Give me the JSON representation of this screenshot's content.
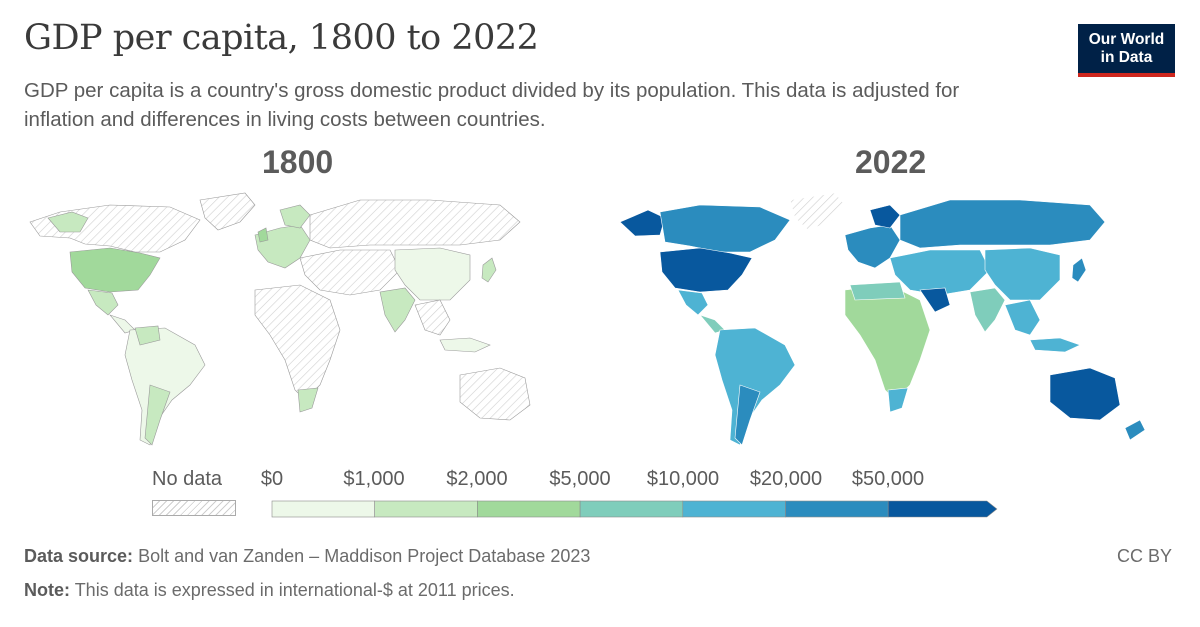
{
  "title": "GDP per capita, 1800 to 2022",
  "subtitle": "GDP per capita is a country's gross domestic product divided by its population. This data is adjusted for inflation and differences in living costs between countries.",
  "logo": {
    "line1": "Our World",
    "line2": "in Data"
  },
  "maps": [
    {
      "year": "1800"
    },
    {
      "year": "2022"
    }
  ],
  "legend": {
    "no_data_label": "No data",
    "ticks": [
      "$0",
      "$1,000",
      "$2,000",
      "$5,000",
      "$10,000",
      "$20,000",
      "$50,000"
    ],
    "colors": [
      "#edf8e9",
      "#c7e9c0",
      "#a1d99b",
      "#7fcdbb",
      "#4eb3d3",
      "#2b8cbe",
      "#08589e"
    ]
  },
  "footer": {
    "source_label": "Data source:",
    "source_text": "Bolt and van Zanden – Maddison Project Database 2023",
    "note_label": "Note:",
    "note_text": "This data is expressed in international-$ at 2011 prices.",
    "license": "CC BY"
  },
  "colors": {
    "nodata_hatch": "#cfcfcf",
    "land_default": "#ffffff",
    "border": "#9a9a9a"
  }
}
